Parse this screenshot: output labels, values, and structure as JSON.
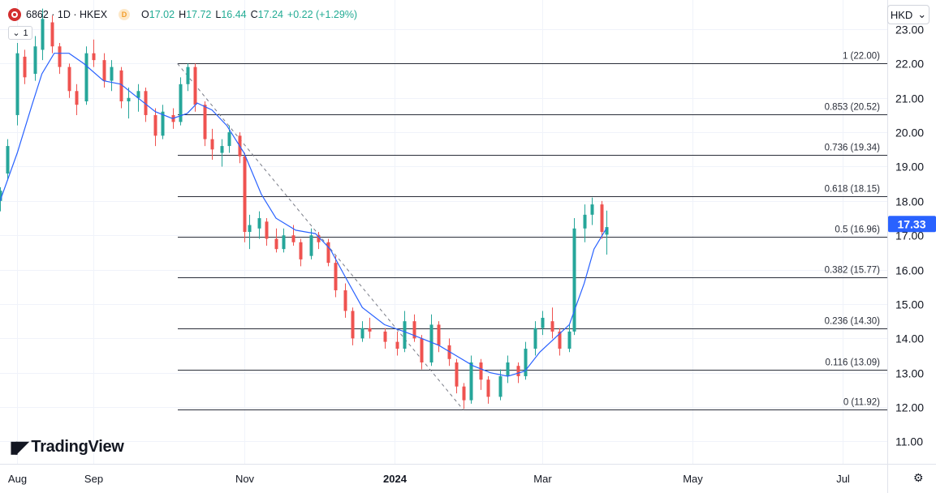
{
  "header": {
    "symbol": "6862 · 1D · HKEX",
    "badge": "D",
    "open_label": "O",
    "open": "17.02",
    "high_label": "H",
    "high": "17.72",
    "low_label": "L",
    "low": "16.44",
    "close_label": "C",
    "close": "17.24",
    "change": "+0.22 (+1.29%)"
  },
  "collapse_count": "1",
  "currency": "HKD",
  "brand": "TradingView",
  "colors": {
    "up": "#26a69a",
    "down": "#ef5350",
    "ma": "#2962ff",
    "price_badge": "#2962ff"
  },
  "chart_data": {
    "type": "candlestick",
    "y_range": [
      10.35,
      23.85
    ],
    "y_ticks": [
      "23.00",
      "22.00",
      "21.00",
      "20.00",
      "19.00",
      "18.00",
      "17.00",
      "16.00",
      "15.00",
      "14.00",
      "13.00",
      "12.00",
      "11.00"
    ],
    "y_tick_values": [
      23,
      22,
      21,
      20,
      19,
      18,
      17,
      16,
      15,
      14,
      13,
      12,
      11
    ],
    "x_range": [
      "2023-07-25",
      "2024-07-19"
    ],
    "x_ticks": [
      {
        "label": "Aug",
        "date": "2023-08-01"
      },
      {
        "label": "Sep",
        "date": "2023-09-01"
      },
      {
        "label": "Nov",
        "date": "2023-11-01"
      },
      {
        "label": "2024",
        "date": "2024-01-01",
        "bold": true
      },
      {
        "label": "Mar",
        "date": "2024-03-01"
      },
      {
        "label": "May",
        "date": "2024-05-01"
      },
      {
        "label": "Jul",
        "date": "2024-07-01"
      }
    ],
    "last_price": "17.33",
    "last_price_value": 17.33,
    "fib_levels": [
      {
        "label": "1 (22.00)",
        "value": 22.0
      },
      {
        "label": "0.853 (20.52)",
        "value": 20.52
      },
      {
        "label": "0.736 (19.34)",
        "value": 19.34
      },
      {
        "label": "0.618 (18.15)",
        "value": 18.15
      },
      {
        "label": "0.5 (16.96)",
        "value": 16.96
      },
      {
        "label": "0.382 (15.77)",
        "value": 15.77
      },
      {
        "label": "0.236 (14.30)",
        "value": 14.3
      },
      {
        "label": "0.116 (13.09)",
        "value": 13.09
      },
      {
        "label": "0 (11.92)",
        "value": 11.92
      }
    ],
    "fib_start_date": "2023-10-05",
    "trend_line": [
      {
        "date": "2023-10-05",
        "value": 22.0
      },
      {
        "date": "2024-01-29",
        "value": 11.92
      }
    ],
    "moving_average": [
      {
        "date": "2023-07-25",
        "value": 18.0
      },
      {
        "date": "2023-08-01",
        "value": 19.4
      },
      {
        "date": "2023-08-07",
        "value": 20.8
      },
      {
        "date": "2023-08-11",
        "value": 21.7
      },
      {
        "date": "2023-08-16",
        "value": 22.3
      },
      {
        "date": "2023-08-22",
        "value": 22.3
      },
      {
        "date": "2023-08-28",
        "value": 22.0
      },
      {
        "date": "2023-09-05",
        "value": 21.5
      },
      {
        "date": "2023-09-12",
        "value": 21.4
      },
      {
        "date": "2023-09-19",
        "value": 21.0
      },
      {
        "date": "2023-09-26",
        "value": 20.6
      },
      {
        "date": "2023-10-03",
        "value": 20.4
      },
      {
        "date": "2023-10-09",
        "value": 20.55
      },
      {
        "date": "2023-10-13",
        "value": 20.85
      },
      {
        "date": "2023-10-19",
        "value": 20.65
      },
      {
        "date": "2023-10-25",
        "value": 20.2
      },
      {
        "date": "2023-11-01",
        "value": 19.4
      },
      {
        "date": "2023-11-08",
        "value": 18.2
      },
      {
        "date": "2023-11-14",
        "value": 17.5
      },
      {
        "date": "2023-11-22",
        "value": 17.15
      },
      {
        "date": "2023-11-30",
        "value": 17.05
      },
      {
        "date": "2023-12-06",
        "value": 16.6
      },
      {
        "date": "2023-12-12",
        "value": 15.8
      },
      {
        "date": "2023-12-19",
        "value": 14.9
      },
      {
        "date": "2023-12-28",
        "value": 14.4
      },
      {
        "date": "2024-01-05",
        "value": 14.2
      },
      {
        "date": "2024-01-12",
        "value": 14.0
      },
      {
        "date": "2024-01-19",
        "value": 13.8
      },
      {
        "date": "2024-01-26",
        "value": 13.5
      },
      {
        "date": "2024-02-02",
        "value": 13.2
      },
      {
        "date": "2024-02-09",
        "value": 13.0
      },
      {
        "date": "2024-02-16",
        "value": 12.9
      },
      {
        "date": "2024-02-23",
        "value": 13.05
      },
      {
        "date": "2024-02-29",
        "value": 13.6
      },
      {
        "date": "2024-03-06",
        "value": 14.0
      },
      {
        "date": "2024-03-12",
        "value": 14.4
      },
      {
        "date": "2024-03-18",
        "value": 15.6
      },
      {
        "date": "2024-03-22",
        "value": 16.6
      },
      {
        "date": "2024-03-27",
        "value": 17.2
      }
    ],
    "candles": [
      {
        "date": "2023-07-25",
        "open": 18.0,
        "high": 18.4,
        "low": 17.7,
        "close": 18.3
      },
      {
        "date": "2023-07-28",
        "open": 18.8,
        "high": 19.8,
        "low": 18.6,
        "close": 19.6
      },
      {
        "date": "2023-08-01",
        "open": 20.5,
        "high": 22.6,
        "low": 20.2,
        "close": 22.3
      },
      {
        "date": "2023-08-04",
        "open": 22.2,
        "high": 22.4,
        "low": 21.4,
        "close": 21.6
      },
      {
        "date": "2023-08-08",
        "open": 21.7,
        "high": 22.8,
        "low": 21.5,
        "close": 22.5
      },
      {
        "date": "2023-08-11",
        "open": 22.4,
        "high": 23.6,
        "low": 22.1,
        "close": 23.3
      },
      {
        "date": "2023-08-15",
        "open": 23.2,
        "high": 23.4,
        "low": 22.3,
        "close": 22.5
      },
      {
        "date": "2023-08-18",
        "open": 22.5,
        "high": 22.6,
        "low": 21.7,
        "close": 21.9
      },
      {
        "date": "2023-08-22",
        "open": 21.9,
        "high": 22.0,
        "low": 21.0,
        "close": 21.2
      },
      {
        "date": "2023-08-25",
        "open": 21.2,
        "high": 21.4,
        "low": 20.5,
        "close": 20.8
      },
      {
        "date": "2023-08-29",
        "open": 20.9,
        "high": 22.5,
        "low": 20.8,
        "close": 22.3
      },
      {
        "date": "2023-09-01",
        "open": 22.3,
        "high": 22.7,
        "low": 21.9,
        "close": 22.1
      },
      {
        "date": "2023-09-05",
        "open": 22.1,
        "high": 22.3,
        "low": 21.3,
        "close": 21.5
      },
      {
        "date": "2023-09-08",
        "open": 21.5,
        "high": 22.1,
        "low": 21.2,
        "close": 21.9
      },
      {
        "date": "2023-09-12",
        "open": 21.8,
        "high": 21.9,
        "low": 20.7,
        "close": 20.9
      },
      {
        "date": "2023-09-15",
        "open": 20.9,
        "high": 21.3,
        "low": 20.4,
        "close": 21.0
      },
      {
        "date": "2023-09-19",
        "open": 21.0,
        "high": 21.4,
        "low": 20.6,
        "close": 21.2
      },
      {
        "date": "2023-09-22",
        "open": 21.2,
        "high": 21.3,
        "low": 20.3,
        "close": 20.5
      },
      {
        "date": "2023-09-26",
        "open": 20.5,
        "high": 20.7,
        "low": 19.6,
        "close": 19.9
      },
      {
        "date": "2023-09-29",
        "open": 19.9,
        "high": 20.8,
        "low": 19.8,
        "close": 20.6
      },
      {
        "date": "2023-10-03",
        "open": 20.5,
        "high": 20.7,
        "low": 20.1,
        "close": 20.3
      },
      {
        "date": "2023-10-06",
        "open": 20.3,
        "high": 21.6,
        "low": 20.2,
        "close": 21.4
      },
      {
        "date": "2023-10-09",
        "open": 21.4,
        "high": 22.0,
        "low": 21.2,
        "close": 21.9
      },
      {
        "date": "2023-10-12",
        "open": 21.9,
        "high": 22.0,
        "low": 20.6,
        "close": 20.8
      },
      {
        "date": "2023-10-16",
        "open": 20.8,
        "high": 20.9,
        "low": 19.6,
        "close": 19.8
      },
      {
        "date": "2023-10-19",
        "open": 19.8,
        "high": 20.1,
        "low": 19.2,
        "close": 19.5
      },
      {
        "date": "2023-10-23",
        "open": 19.4,
        "high": 19.8,
        "low": 19.0,
        "close": 19.6
      },
      {
        "date": "2023-10-26",
        "open": 19.6,
        "high": 20.2,
        "low": 19.4,
        "close": 20.0
      },
      {
        "date": "2023-10-30",
        "open": 19.9,
        "high": 20.0,
        "low": 19.1,
        "close": 19.3
      },
      {
        "date": "2023-11-01",
        "open": 19.3,
        "high": 19.4,
        "low": 16.8,
        "close": 17.1
      },
      {
        "date": "2023-11-03",
        "open": 17.1,
        "high": 17.6,
        "low": 16.6,
        "close": 17.3
      },
      {
        "date": "2023-11-07",
        "open": 17.2,
        "high": 17.7,
        "low": 16.9,
        "close": 17.5
      },
      {
        "date": "2023-11-10",
        "open": 17.4,
        "high": 17.5,
        "low": 16.7,
        "close": 16.9
      },
      {
        "date": "2023-11-14",
        "open": 16.9,
        "high": 17.2,
        "low": 16.5,
        "close": 16.6
      },
      {
        "date": "2023-11-17",
        "open": 16.6,
        "high": 17.2,
        "low": 16.5,
        "close": 17.0
      },
      {
        "date": "2023-11-21",
        "open": 17.0,
        "high": 17.3,
        "low": 16.7,
        "close": 16.8
      },
      {
        "date": "2023-11-24",
        "open": 16.8,
        "high": 16.9,
        "low": 16.1,
        "close": 16.3
      },
      {
        "date": "2023-11-28",
        "open": 16.4,
        "high": 17.2,
        "low": 16.3,
        "close": 17.0
      },
      {
        "date": "2023-12-01",
        "open": 17.0,
        "high": 17.1,
        "low": 16.6,
        "close": 16.8
      },
      {
        "date": "2023-12-05",
        "open": 16.8,
        "high": 16.9,
        "low": 16.1,
        "close": 16.2
      },
      {
        "date": "2023-12-08",
        "open": 16.2,
        "high": 16.4,
        "low": 15.2,
        "close": 15.4
      },
      {
        "date": "2023-12-12",
        "open": 15.4,
        "high": 15.6,
        "low": 14.6,
        "close": 14.8
      },
      {
        "date": "2023-12-15",
        "open": 14.8,
        "high": 14.9,
        "low": 13.8,
        "close": 14.0
      },
      {
        "date": "2023-12-19",
        "open": 14.0,
        "high": 14.5,
        "low": 13.9,
        "close": 14.3
      },
      {
        "date": "2023-12-22",
        "open": 14.3,
        "high": 14.6,
        "low": 14.0,
        "close": 14.2
      },
      {
        "date": "2023-12-28",
        "open": 14.2,
        "high": 14.3,
        "low": 13.7,
        "close": 13.9
      },
      {
        "date": "2024-01-02",
        "open": 13.9,
        "high": 14.2,
        "low": 13.5,
        "close": 13.7
      },
      {
        "date": "2024-01-05",
        "open": 13.7,
        "high": 14.8,
        "low": 13.6,
        "close": 14.5
      },
      {
        "date": "2024-01-09",
        "open": 14.5,
        "high": 14.7,
        "low": 13.9,
        "close": 14.0
      },
      {
        "date": "2024-01-12",
        "open": 14.0,
        "high": 14.1,
        "low": 13.1,
        "close": 13.3
      },
      {
        "date": "2024-01-16",
        "open": 13.3,
        "high": 14.7,
        "low": 13.2,
        "close": 14.4
      },
      {
        "date": "2024-01-19",
        "open": 14.4,
        "high": 14.5,
        "low": 13.6,
        "close": 13.8
      },
      {
        "date": "2024-01-23",
        "open": 13.8,
        "high": 14.0,
        "low": 13.2,
        "close": 13.4
      },
      {
        "date": "2024-01-26",
        "open": 13.3,
        "high": 13.4,
        "low": 12.4,
        "close": 12.6
      },
      {
        "date": "2024-01-29",
        "open": 12.6,
        "high": 12.7,
        "low": 11.95,
        "close": 12.2
      },
      {
        "date": "2024-02-01",
        "open": 12.2,
        "high": 13.5,
        "low": 12.1,
        "close": 13.3
      },
      {
        "date": "2024-02-05",
        "open": 13.3,
        "high": 13.4,
        "low": 12.5,
        "close": 12.8
      },
      {
        "date": "2024-02-08",
        "open": 12.8,
        "high": 12.9,
        "low": 12.1,
        "close": 12.3
      },
      {
        "date": "2024-02-13",
        "open": 12.3,
        "high": 13.1,
        "low": 12.2,
        "close": 12.9
      },
      {
        "date": "2024-02-16",
        "open": 12.9,
        "high": 13.5,
        "low": 12.7,
        "close": 13.3
      },
      {
        "date": "2024-02-20",
        "open": 13.2,
        "high": 13.3,
        "low": 12.7,
        "close": 12.9
      },
      {
        "date": "2024-02-23",
        "open": 12.9,
        "high": 13.9,
        "low": 12.8,
        "close": 13.7
      },
      {
        "date": "2024-02-27",
        "open": 13.7,
        "high": 14.5,
        "low": 13.5,
        "close": 14.3
      },
      {
        "date": "2024-03-01",
        "open": 14.3,
        "high": 14.8,
        "low": 14.1,
        "close": 14.6
      },
      {
        "date": "2024-03-05",
        "open": 14.5,
        "high": 14.9,
        "low": 14.0,
        "close": 14.2
      },
      {
        "date": "2024-03-08",
        "open": 14.2,
        "high": 14.3,
        "low": 13.5,
        "close": 13.7
      },
      {
        "date": "2024-03-12",
        "open": 13.7,
        "high": 14.4,
        "low": 13.6,
        "close": 14.2
      },
      {
        "date": "2024-03-14",
        "open": 14.2,
        "high": 17.5,
        "low": 14.1,
        "close": 17.2
      },
      {
        "date": "2024-03-18",
        "open": 17.2,
        "high": 17.9,
        "low": 16.8,
        "close": 17.6
      },
      {
        "date": "2024-03-21",
        "open": 17.6,
        "high": 18.1,
        "low": 17.3,
        "close": 17.9
      },
      {
        "date": "2024-03-25",
        "open": 17.9,
        "high": 18.0,
        "low": 16.9,
        "close": 17.1
      },
      {
        "date": "2024-03-27",
        "open": 17.02,
        "high": 17.72,
        "low": 16.44,
        "close": 17.24
      }
    ]
  }
}
